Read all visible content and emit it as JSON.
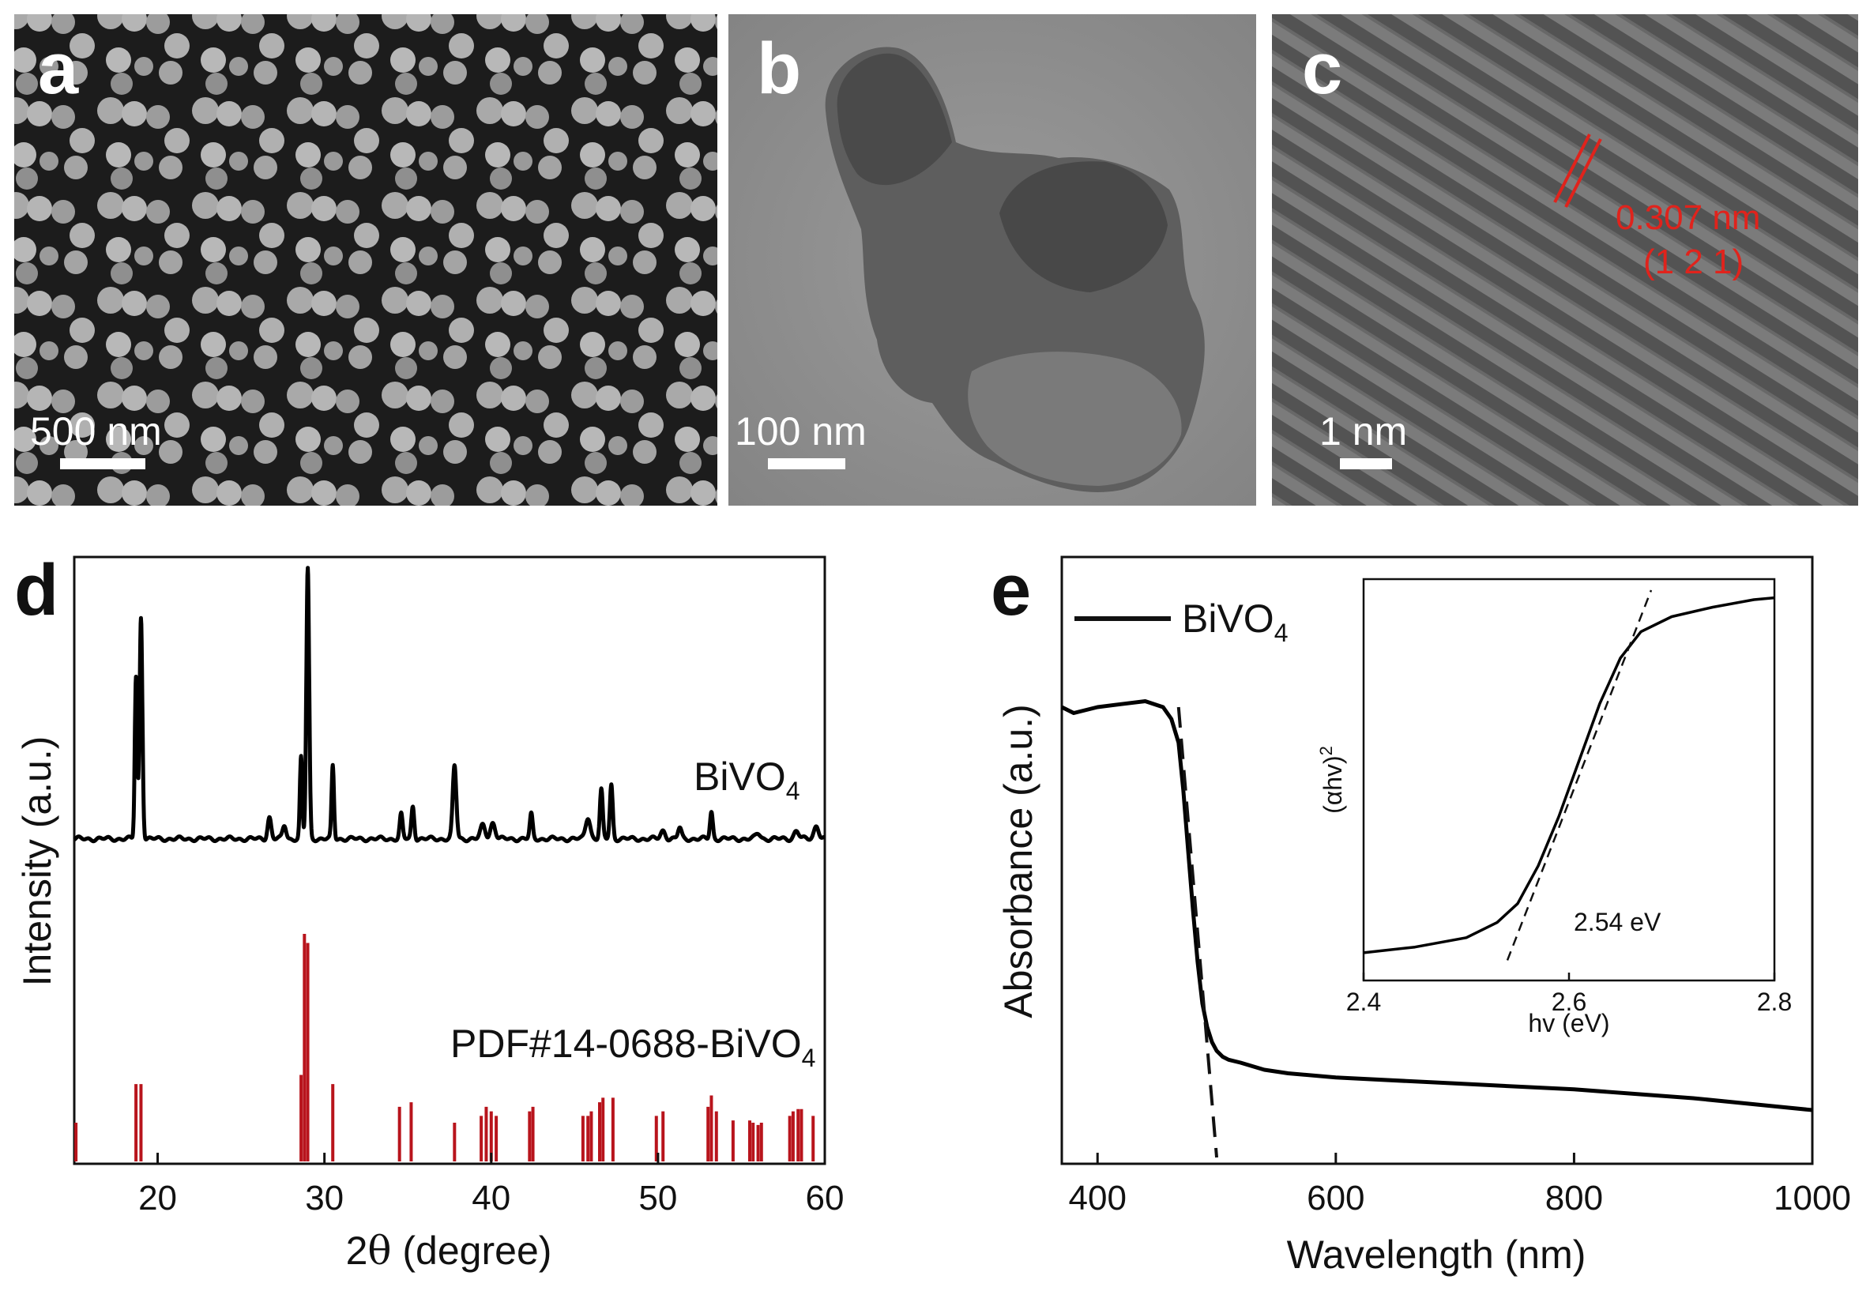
{
  "panels": {
    "a": {
      "label": "a",
      "scale_bar": "500 nm"
    },
    "b": {
      "label": "b",
      "scale_bar": "100 nm"
    },
    "c": {
      "label": "c",
      "scale_bar": "1 nm",
      "d_spacing": "0.307 nm",
      "plane": "(1 2 1)"
    },
    "d": {
      "label": "d"
    },
    "e": {
      "label": "e"
    }
  },
  "colors": {
    "data": "#000000",
    "reference": "#b8141c",
    "annotation": "#e0231c",
    "sem_bg": "#1c1c1c",
    "tem_bg": "#8e8e8e",
    "hrtem_bg": "#555555"
  },
  "chart_data": [
    {
      "panel": "d",
      "type": "line",
      "xlabel_main": "2",
      "xlabel_symbol": "θ",
      "xlabel_rest": " (degree)",
      "ylabel": "Intensity (a.u.)",
      "xlim": [
        15,
        60
      ],
      "xticks": [
        20,
        30,
        40,
        50,
        60
      ],
      "series": [
        {
          "name_main": "BiVO",
          "name_sub": "4",
          "baseline": 3,
          "peaks": [
            {
              "x": 18.7,
              "y": 60,
              "w": 0.1
            },
            {
              "x": 19.0,
              "y": 82,
              "w": 0.12
            },
            {
              "x": 26.7,
              "y": 8,
              "w": 0.15
            },
            {
              "x": 27.6,
              "y": 5,
              "w": 0.15
            },
            {
              "x": 28.6,
              "y": 30,
              "w": 0.1
            },
            {
              "x": 29.0,
              "y": 100,
              "w": 0.12
            },
            {
              "x": 30.5,
              "y": 27,
              "w": 0.1
            },
            {
              "x": 34.6,
              "y": 9,
              "w": 0.12
            },
            {
              "x": 35.3,
              "y": 12,
              "w": 0.12
            },
            {
              "x": 37.8,
              "y": 27,
              "w": 0.15
            },
            {
              "x": 39.5,
              "y": 5,
              "w": 0.2
            },
            {
              "x": 40.1,
              "y": 6,
              "w": 0.2
            },
            {
              "x": 42.4,
              "y": 9,
              "w": 0.12
            },
            {
              "x": 45.8,
              "y": 8,
              "w": 0.2
            },
            {
              "x": 46.6,
              "y": 18,
              "w": 0.12
            },
            {
              "x": 47.2,
              "y": 20,
              "w": 0.12
            },
            {
              "x": 50.3,
              "y": 3,
              "w": 0.2
            },
            {
              "x": 51.3,
              "y": 4,
              "w": 0.15
            },
            {
              "x": 53.2,
              "y": 10,
              "w": 0.12
            },
            {
              "x": 56.0,
              "y": 2,
              "w": 0.2
            },
            {
              "x": 58.3,
              "y": 3,
              "w": 0.2
            },
            {
              "x": 59.5,
              "y": 5,
              "w": 0.2
            }
          ]
        },
        {
          "name": "PDF#14-0688-BiVO",
          "name_sub": "4",
          "type": "stick",
          "sticks": [
            {
              "x": 15.1,
              "y": 17
            },
            {
              "x": 18.7,
              "y": 34
            },
            {
              "x": 19.0,
              "y": 34
            },
            {
              "x": 28.6,
              "y": 38
            },
            {
              "x": 28.8,
              "y": 100
            },
            {
              "x": 29.0,
              "y": 96
            },
            {
              "x": 30.5,
              "y": 34
            },
            {
              "x": 34.5,
              "y": 24
            },
            {
              "x": 35.2,
              "y": 26
            },
            {
              "x": 37.8,
              "y": 17
            },
            {
              "x": 39.4,
              "y": 20
            },
            {
              "x": 39.7,
              "y": 24
            },
            {
              "x": 40.0,
              "y": 22
            },
            {
              "x": 40.3,
              "y": 20
            },
            {
              "x": 42.3,
              "y": 22
            },
            {
              "x": 42.5,
              "y": 24
            },
            {
              "x": 45.5,
              "y": 20
            },
            {
              "x": 45.8,
              "y": 20
            },
            {
              "x": 46.0,
              "y": 22
            },
            {
              "x": 46.5,
              "y": 26
            },
            {
              "x": 46.7,
              "y": 28
            },
            {
              "x": 47.3,
              "y": 28
            },
            {
              "x": 49.9,
              "y": 20
            },
            {
              "x": 50.3,
              "y": 22
            },
            {
              "x": 53.0,
              "y": 24
            },
            {
              "x": 53.2,
              "y": 29
            },
            {
              "x": 53.5,
              "y": 22
            },
            {
              "x": 54.5,
              "y": 18
            },
            {
              "x": 55.5,
              "y": 18
            },
            {
              "x": 55.7,
              "y": 17
            },
            {
              "x": 56.0,
              "y": 16
            },
            {
              "x": 56.2,
              "y": 17
            },
            {
              "x": 57.9,
              "y": 20
            },
            {
              "x": 58.1,
              "y": 22
            },
            {
              "x": 58.4,
              "y": 23
            },
            {
              "x": 58.6,
              "y": 23
            },
            {
              "x": 59.3,
              "y": 20
            }
          ]
        }
      ]
    },
    {
      "panel": "e",
      "type": "line",
      "xlabel": "Wavelength (nm)",
      "ylabel": "Absorbance (a.u.)",
      "xlim": [
        370,
        1000
      ],
      "xticks": [
        400,
        600,
        800,
        1000
      ],
      "ylim": [
        0,
        100
      ],
      "series": [
        {
          "name_main": "BiVO",
          "name_sub": "4",
          "x": [
            370,
            380,
            400,
            420,
            440,
            455,
            462,
            468,
            472,
            476,
            480,
            484,
            488,
            492,
            496,
            500,
            505,
            510,
            520,
            540,
            560,
            600,
            700,
            800,
            900,
            1000
          ],
          "y": [
            76,
            75,
            76,
            76.5,
            77,
            76,
            74,
            70,
            62,
            52,
            42,
            33,
            26,
            22,
            19.5,
            18,
            17,
            16.5,
            16,
            14.8,
            14.2,
            13.5,
            12.5,
            11.5,
            10,
            8
          ]
        }
      ],
      "tangent": {
        "x": [
          468,
          500
        ],
        "y": [
          76,
          0
        ]
      },
      "inset": {
        "xlabel": "hv (eV)",
        "ylabel": "(αhv)",
        "ylabel_sup": "2",
        "xlim": [
          2.4,
          2.8
        ],
        "xticks": [
          2.4,
          2.6,
          2.8
        ],
        "annotation": "2.54 eV",
        "x": [
          2.4,
          2.45,
          2.5,
          2.53,
          2.55,
          2.57,
          2.59,
          2.61,
          2.63,
          2.65,
          2.67,
          2.7,
          2.74,
          2.78,
          2.8
        ],
        "y": [
          4,
          5.5,
          8,
          12,
          17,
          27,
          40,
          55,
          70,
          82,
          89,
          93,
          95.5,
          97.5,
          98
        ],
        "tangent": {
          "x": [
            2.54,
            2.68
          ],
          "y": [
            2,
            100
          ]
        }
      }
    }
  ]
}
